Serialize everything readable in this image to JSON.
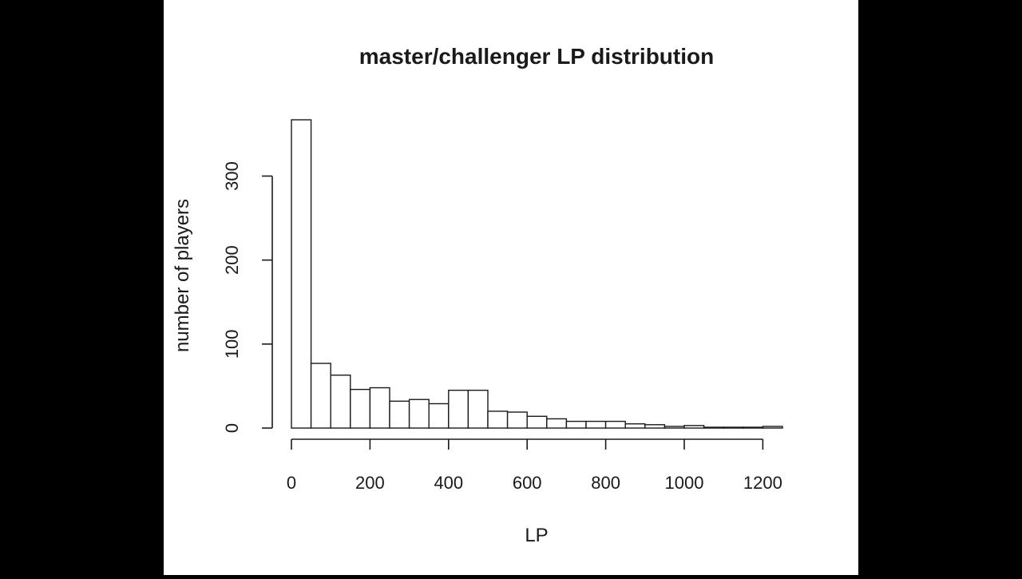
{
  "chart_data": {
    "type": "bar",
    "title": "master/challenger LP distribution",
    "xlabel": "LP",
    "ylabel": "number of players",
    "bin_width": 50,
    "bins": [
      {
        "start": 0,
        "end": 50,
        "count": 367
      },
      {
        "start": 50,
        "end": 100,
        "count": 77
      },
      {
        "start": 100,
        "end": 150,
        "count": 63
      },
      {
        "start": 150,
        "end": 200,
        "count": 46
      },
      {
        "start": 200,
        "end": 250,
        "count": 48
      },
      {
        "start": 250,
        "end": 300,
        "count": 32
      },
      {
        "start": 300,
        "end": 350,
        "count": 34
      },
      {
        "start": 350,
        "end": 400,
        "count": 29
      },
      {
        "start": 400,
        "end": 450,
        "count": 45
      },
      {
        "start": 450,
        "end": 500,
        "count": 45
      },
      {
        "start": 500,
        "end": 550,
        "count": 20
      },
      {
        "start": 550,
        "end": 600,
        "count": 19
      },
      {
        "start": 600,
        "end": 650,
        "count": 14
      },
      {
        "start": 650,
        "end": 700,
        "count": 11
      },
      {
        "start": 700,
        "end": 750,
        "count": 8
      },
      {
        "start": 750,
        "end": 800,
        "count": 8
      },
      {
        "start": 800,
        "end": 850,
        "count": 8
      },
      {
        "start": 850,
        "end": 900,
        "count": 5
      },
      {
        "start": 900,
        "end": 950,
        "count": 4
      },
      {
        "start": 950,
        "end": 1000,
        "count": 2
      },
      {
        "start": 1000,
        "end": 1050,
        "count": 3
      },
      {
        "start": 1050,
        "end": 1100,
        "count": 1
      },
      {
        "start": 1100,
        "end": 1150,
        "count": 1
      },
      {
        "start": 1150,
        "end": 1200,
        "count": 1
      },
      {
        "start": 1200,
        "end": 1250,
        "count": 2
      }
    ],
    "xticks": [
      "0",
      "200",
      "400",
      "600",
      "800",
      "1000",
      "1200"
    ],
    "yticks": [
      "0",
      "100",
      "200",
      "300"
    ],
    "xlim": [
      0,
      1250
    ],
    "ylim": [
      0,
      367
    ],
    "grid": false,
    "legend": "none",
    "bar_fill": "#ffffff",
    "bar_stroke": "#1a1a1a",
    "plot_background": "#ffffff",
    "frame_background": "#000000"
  }
}
